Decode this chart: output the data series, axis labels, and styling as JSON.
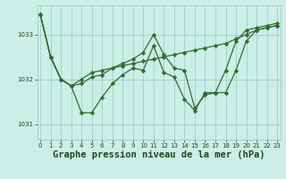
{
  "title": "Graphe pression niveau de la mer (hPa)",
  "background_color": "#cbeee7",
  "plot_bg_color": "#cbeee7",
  "line_color": "#2d6e2d",
  "grid_color": "#9fbfba",
  "text_color": "#1a4a1a",
  "xlim": [
    -0.3,
    23.3
  ],
  "ylim": [
    1030.65,
    1033.65
  ],
  "yticks": [
    1031,
    1032,
    1033
  ],
  "xticks": [
    0,
    1,
    2,
    3,
    4,
    5,
    6,
    7,
    8,
    9,
    10,
    11,
    12,
    13,
    14,
    15,
    16,
    17,
    18,
    19,
    20,
    21,
    22,
    23
  ],
  "series": [
    [
      1033.45,
      1032.5,
      1032.0,
      1031.85,
      1031.25,
      1031.25,
      1031.6,
      1031.9,
      1032.1,
      1032.25,
      1032.2,
      1032.75,
      1032.15,
      1032.05,
      1031.55,
      1031.3,
      1031.7,
      1031.7,
      1032.2,
      1032.85,
      1033.1,
      1033.15,
      1033.2,
      1033.25
    ],
    [
      1033.45,
      1032.5,
      1032.0,
      1031.85,
      1032.0,
      1032.15,
      1032.2,
      1032.25,
      1032.3,
      1032.35,
      1032.4,
      1032.45,
      1032.5,
      1032.55,
      1032.6,
      1032.65,
      1032.7,
      1032.75,
      1032.8,
      1032.9,
      1033.0,
      1033.1,
      1033.15,
      1033.2
    ],
    [
      1033.45,
      1032.5,
      1032.0,
      1031.85,
      1031.9,
      1032.05,
      1032.1,
      1032.25,
      1032.35,
      1032.45,
      1032.6,
      1033.0,
      1032.55,
      1032.25,
      1032.2,
      1031.35,
      1031.65,
      1031.7,
      1031.7,
      1032.2,
      1032.85,
      1033.1,
      1033.15,
      1033.2
    ]
  ],
  "marker": "D",
  "marker_size": 2.2,
  "linewidth": 0.9,
  "title_fontsize": 7.5,
  "tick_fontsize": 5.0
}
